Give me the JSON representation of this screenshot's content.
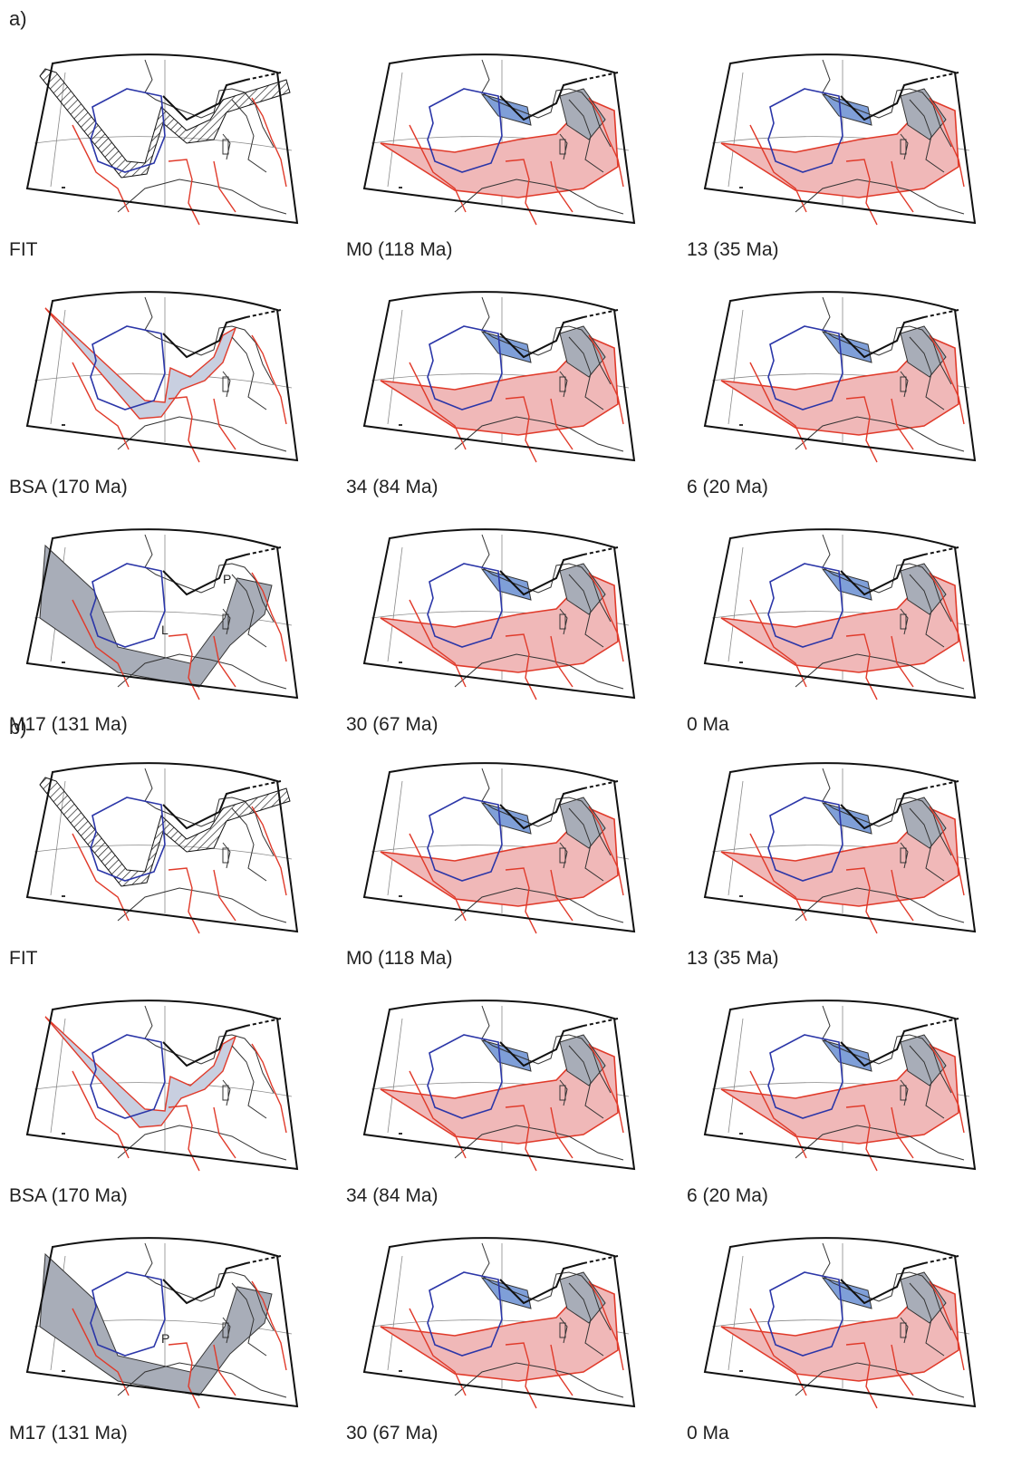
{
  "figure": {
    "parts": [
      {
        "label": "a)",
        "panels": [
          {
            "caption": "FIT",
            "style": "hatch",
            "letters": []
          },
          {
            "caption": "M0 (118 Ma)",
            "style": "pink",
            "letters": []
          },
          {
            "caption": "13 (35 Ma)",
            "style": "pink",
            "letters": []
          },
          {
            "caption": "BSA (170 Ma)",
            "style": "blueline",
            "letters": []
          },
          {
            "caption": "34 (84 Ma)",
            "style": "pink",
            "letters": []
          },
          {
            "caption": "6 (20 Ma)",
            "style": "pink",
            "letters": []
          },
          {
            "caption": "M17 (131 Ma)",
            "style": "gray",
            "letters": [
              "L",
              "P"
            ]
          },
          {
            "caption": "30 (67 Ma)",
            "style": "pink",
            "letters": []
          },
          {
            "caption": "0 Ma",
            "style": "pink",
            "letters": []
          }
        ]
      },
      {
        "label": "b)",
        "panels": [
          {
            "caption": "FIT",
            "style": "hatch",
            "letters": []
          },
          {
            "caption": "M0 (118 Ma)",
            "style": "pink",
            "letters": []
          },
          {
            "caption": "13 (35 Ma)",
            "style": "pink",
            "letters": []
          },
          {
            "caption": "BSA (170 Ma)",
            "style": "blueline",
            "letters": []
          },
          {
            "caption": "34 (84 Ma)",
            "style": "pink",
            "letters": []
          },
          {
            "caption": "6 (20 Ma)",
            "style": "pink",
            "letters": []
          },
          {
            "caption": "M17 (131 Ma)",
            "style": "gray",
            "letters": [
              "P"
            ]
          },
          {
            "caption": "30 (67 Ma)",
            "style": "pink",
            "letters": []
          },
          {
            "caption": "0 Ma",
            "style": "pink",
            "letters": []
          }
        ]
      }
    ]
  },
  "colors": {
    "iberia_outline": "#2b36a8",
    "africa_margin": "#e03a2a",
    "pink_fill": "#f0b8b8",
    "blue_fill": "#7f9fd8",
    "gray_fill": "#a8adb8",
    "coast": "#333333",
    "frame": "#111111",
    "graticule": "#888888"
  }
}
